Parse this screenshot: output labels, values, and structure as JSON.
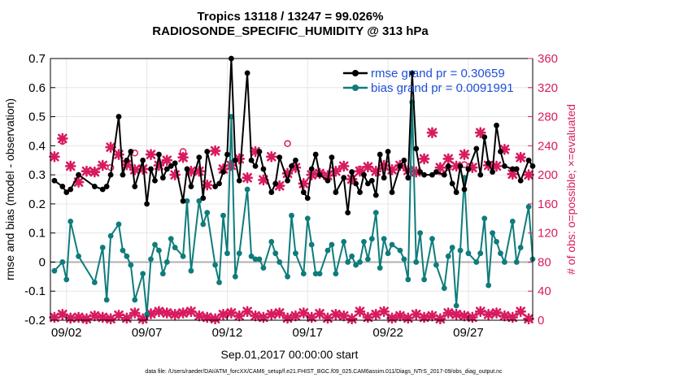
{
  "chart_data": {
    "type": "line",
    "title": "Tropics 13118 / 13247 = 99.026%",
    "subtitle": "RADIOSONDE_SPECIFIC_HUMIDITY @ 313 hPa",
    "xlabel": "Sep.01,2017 00:00:00 start",
    "ylabel": "rmse and bias (model - observation)",
    "y2label": "# of obs: o=possible; ×=evaluated",
    "footnote": "data file: /Users/raeder/DAI/ATM_forcXX/CAM6_setup/f.e21.FHIST_BGC.f09_025.CAM6assim.011/Diags_NTrS_2017-09/obs_diag_output.nc",
    "xlim": [
      1,
      31
    ],
    "ylim": [
      -0.2,
      0.7
    ],
    "y2lim": [
      0,
      360
    ],
    "x_tick_labels": [
      "09/02",
      "09/07",
      "09/12",
      "09/17",
      "09/22",
      "09/27"
    ],
    "x_tick_values": [
      2,
      7,
      12,
      17,
      22,
      27
    ],
    "y_tick_labels": [
      "-0.2",
      "-0.1",
      "0",
      "0.1",
      "0.2",
      "0.3",
      "0.4",
      "0.5",
      "0.6",
      "0.7"
    ],
    "y_tick_values": [
      -0.2,
      -0.1,
      0,
      0.1,
      0.2,
      0.3,
      0.4,
      0.5,
      0.6,
      0.7
    ],
    "y2_tick_labels": [
      "0",
      "40",
      "80",
      "120",
      "160",
      "200",
      "240",
      "280",
      "320",
      "360"
    ],
    "y2_tick_values": [
      0,
      40,
      80,
      120,
      160,
      200,
      240,
      280,
      320,
      360
    ],
    "grid": true,
    "legend_position": "top-right",
    "colors": {
      "rmse": "#000000",
      "bias": "#0e7c7b",
      "obs": "#d81b60",
      "zero_line": "#b0b0b0",
      "legend_text": "#1f4fd8"
    },
    "series": [
      {
        "name": "rmse grand pr = 0.30659",
        "axis": "left",
        "x": [
          1.25,
          1.75,
          2.0,
          2.25,
          2.75,
          3.75,
          4.25,
          4.5,
          4.75,
          5.25,
          5.5,
          5.75,
          6.0,
          6.25,
          6.75,
          7.0,
          7.25,
          7.5,
          7.75,
          8.0,
          8.25,
          8.5,
          8.75,
          9.25,
          9.5,
          9.75,
          10.25,
          10.5,
          10.75,
          11.25,
          11.5,
          11.75,
          12.0,
          12.25,
          12.5,
          12.75,
          13.25,
          13.5,
          13.75,
          14.0,
          14.25,
          14.75,
          15.0,
          15.25,
          15.75,
          16.0,
          16.25,
          16.75,
          17.0,
          17.25,
          17.5,
          17.75,
          18.25,
          18.5,
          18.75,
          19.25,
          19.5,
          19.75,
          20.0,
          20.25,
          20.5,
          20.75,
          21.0,
          21.25,
          21.5,
          21.75,
          22.0,
          22.25,
          22.75,
          23.0,
          23.25,
          23.5,
          23.75,
          24.0,
          24.25,
          24.75,
          25.0,
          25.5,
          25.75,
          26.0,
          26.25,
          26.5,
          26.75,
          27.0,
          27.5,
          27.75,
          28.0,
          28.25,
          28.5,
          28.75,
          29.0,
          29.25,
          29.75,
          30.0,
          30.25,
          30.75,
          31.0
        ],
        "values": [
          0.28,
          0.26,
          0.24,
          0.25,
          0.3,
          0.26,
          0.25,
          0.26,
          0.3,
          0.5,
          0.3,
          0.35,
          0.38,
          0.26,
          0.35,
          0.2,
          0.32,
          0.28,
          0.37,
          0.29,
          0.32,
          0.33,
          0.34,
          0.21,
          0.32,
          0.26,
          0.36,
          0.22,
          0.38,
          0.26,
          0.27,
          0.31,
          0.37,
          0.7,
          0.35,
          0.28,
          0.65,
          0.35,
          0.33,
          0.38,
          0.32,
          0.24,
          0.27,
          0.36,
          0.28,
          0.33,
          0.35,
          0.24,
          0.22,
          0.32,
          0.37,
          0.3,
          0.28,
          0.36,
          0.24,
          0.29,
          0.17,
          0.31,
          0.27,
          0.24,
          0.3,
          0.27,
          0.28,
          0.23,
          0.37,
          0.29,
          0.38,
          0.24,
          0.33,
          0.35,
          0.29,
          0.65,
          0.39,
          0.31,
          0.3,
          0.3,
          0.31,
          0.3,
          0.33,
          0.27,
          0.24,
          0.33,
          0.25,
          0.32,
          0.39,
          0.3,
          0.43,
          0.34,
          0.31,
          0.47,
          0.38,
          0.33,
          0.32,
          0.32,
          0.28,
          0.35,
          0.33
        ]
      },
      {
        "name": "bias grand pr = 0.0091991",
        "axis": "left",
        "x": [
          1.25,
          1.75,
          2.0,
          2.25,
          2.75,
          3.75,
          4.25,
          4.5,
          4.75,
          5.25,
          5.5,
          5.75,
          6.0,
          6.25,
          6.75,
          7.0,
          7.25,
          7.5,
          7.75,
          8.0,
          8.25,
          8.5,
          8.75,
          9.25,
          9.5,
          9.75,
          10.25,
          10.5,
          10.75,
          11.25,
          11.5,
          11.75,
          12.0,
          12.25,
          12.5,
          12.75,
          13.25,
          13.5,
          13.75,
          14.0,
          14.25,
          14.75,
          15.0,
          15.25,
          15.75,
          16.0,
          16.25,
          16.75,
          17.0,
          17.25,
          17.5,
          17.75,
          18.25,
          18.5,
          18.75,
          19.25,
          19.5,
          19.75,
          20.0,
          20.25,
          20.5,
          20.75,
          21.0,
          21.25,
          21.5,
          21.75,
          22.0,
          22.25,
          22.75,
          23.0,
          23.25,
          23.5,
          23.75,
          24.0,
          24.25,
          24.75,
          25.0,
          25.5,
          25.75,
          26.0,
          26.25,
          26.5,
          26.75,
          27.0,
          27.5,
          27.75,
          28.0,
          28.25,
          28.5,
          28.75,
          29.0,
          29.25,
          29.75,
          30.0,
          30.25,
          30.75,
          31.0
        ],
        "values": [
          -0.03,
          0.0,
          -0.06,
          0.14,
          0.02,
          -0.07,
          0.05,
          -0.13,
          0.09,
          0.13,
          0.04,
          0.02,
          -0.01,
          -0.13,
          -0.04,
          -0.18,
          0.01,
          0.06,
          0.04,
          -0.04,
          0.0,
          0.08,
          0.05,
          0.02,
          0.21,
          -0.03,
          0.21,
          0.13,
          0.17,
          -0.01,
          -0.07,
          0.16,
          0.03,
          0.5,
          -0.05,
          0.03,
          0.25,
          0.02,
          0.01,
          0.01,
          -0.02,
          0.07,
          0.03,
          0.0,
          -0.05,
          0.16,
          0.03,
          -0.04,
          0.15,
          0.06,
          -0.04,
          -0.04,
          0.04,
          0.06,
          -0.04,
          0.07,
          0.0,
          0.02,
          -0.01,
          0.0,
          0.07,
          0.01,
          0.08,
          0.17,
          -0.02,
          0.08,
          0.03,
          0.06,
          0.04,
          0.01,
          -0.06,
          0.55,
          0.0,
          0.1,
          -0.06,
          0.08,
          -0.01,
          -0.09,
          0.02,
          0.05,
          -0.15,
          0.04,
          0.29,
          0.03,
          0.0,
          0.03,
          0.15,
          -0.08,
          0.1,
          0.07,
          0.03,
          0.0,
          0.14,
          0.0,
          0.05,
          0.19,
          0.01
        ]
      },
      {
        "name": "# of obs evaluated",
        "axis": "right",
        "marker": "x",
        "x": [
          1.25,
          1.75,
          2.25,
          2.75,
          3.25,
          3.75,
          4.25,
          4.75,
          5.25,
          5.75,
          6.25,
          6.75,
          7.25,
          7.75,
          8.25,
          8.75,
          9.25,
          9.75,
          10.25,
          10.75,
          11.25,
          11.75,
          12.25,
          12.75,
          13.25,
          13.75,
          14.25,
          14.75,
          15.25,
          15.75,
          16.25,
          16.75,
          17.25,
          17.75,
          18.25,
          18.75,
          19.25,
          19.75,
          20.25,
          20.75,
          21.25,
          21.75,
          22.25,
          22.75,
          23.25,
          23.75,
          24.25,
          24.75,
          25.25,
          25.75,
          26.25,
          26.75,
          27.25,
          27.75,
          28.25,
          28.75,
          29.25,
          29.75,
          30.25,
          30.75
        ],
        "values": [
          4,
          8,
          3,
          4,
          2,
          6,
          4,
          2,
          7,
          3,
          10,
          2,
          9,
          12,
          10,
          8,
          10,
          12,
          6,
          4,
          2,
          8,
          10,
          6,
          12,
          6,
          4,
          8,
          10,
          3,
          6,
          10,
          4,
          9,
          3,
          8,
          6,
          2,
          12,
          4,
          8,
          12,
          3,
          6,
          3,
          8,
          4,
          6,
          2,
          10,
          8,
          6,
          4,
          12,
          8,
          10,
          6,
          4,
          12,
          2
        ]
      },
      {
        "name": "# of obs possible",
        "axis": "right",
        "marker": "o",
        "x": [
          1.25,
          1.75,
          2.25,
          2.75,
          3.25,
          3.75,
          4.25,
          4.75,
          5.25,
          5.75,
          6.25,
          6.75,
          7.25,
          7.75,
          8.25,
          8.75,
          9.25,
          9.75,
          10.25,
          10.75,
          11.25,
          11.75,
          12.25,
          12.75,
          13.25,
          13.75,
          14.25,
          14.75,
          15.25,
          15.75,
          16.25,
          16.75,
          17.25,
          17.75,
          18.25,
          18.75,
          19.25,
          19.75,
          20.25,
          20.75,
          21.25,
          21.75,
          22.25,
          22.75,
          23.25,
          23.75,
          24.25,
          24.75,
          25.25,
          25.75,
          26.25,
          26.75,
          27.25,
          27.75,
          28.25,
          28.75,
          29.25,
          29.75,
          30.25,
          30.75
        ],
        "values": [
          225,
          250,
          212,
          190,
          205,
          204,
          213,
          238,
          228,
          214,
          207,
          208,
          228,
          213,
          220,
          200,
          224,
          205,
          205,
          186,
          233,
          208,
          213,
          222,
          196,
          232,
          193,
          225,
          185,
          202,
          210,
          188,
          200,
          202,
          199,
          205,
          212,
          194,
          205,
          211,
          205,
          213,
          207,
          213,
          206,
          204,
          222,
          258,
          210,
          222,
          212,
          228,
          210,
          258,
          213,
          212,
          235,
          201,
          224,
          200
        ]
      },
      {
        "name": "# of obs possible (open circles)",
        "axis": "right",
        "marker": "circle",
        "x": [
          1.75,
          3.75,
          4.75,
          6.25,
          9.25,
          15.75,
          20.25,
          25.25,
          25.75,
          26.75
        ],
        "values": [
          246,
          204,
          210,
          230,
          232,
          243,
          208,
          204,
          210,
          214
        ]
      }
    ]
  }
}
